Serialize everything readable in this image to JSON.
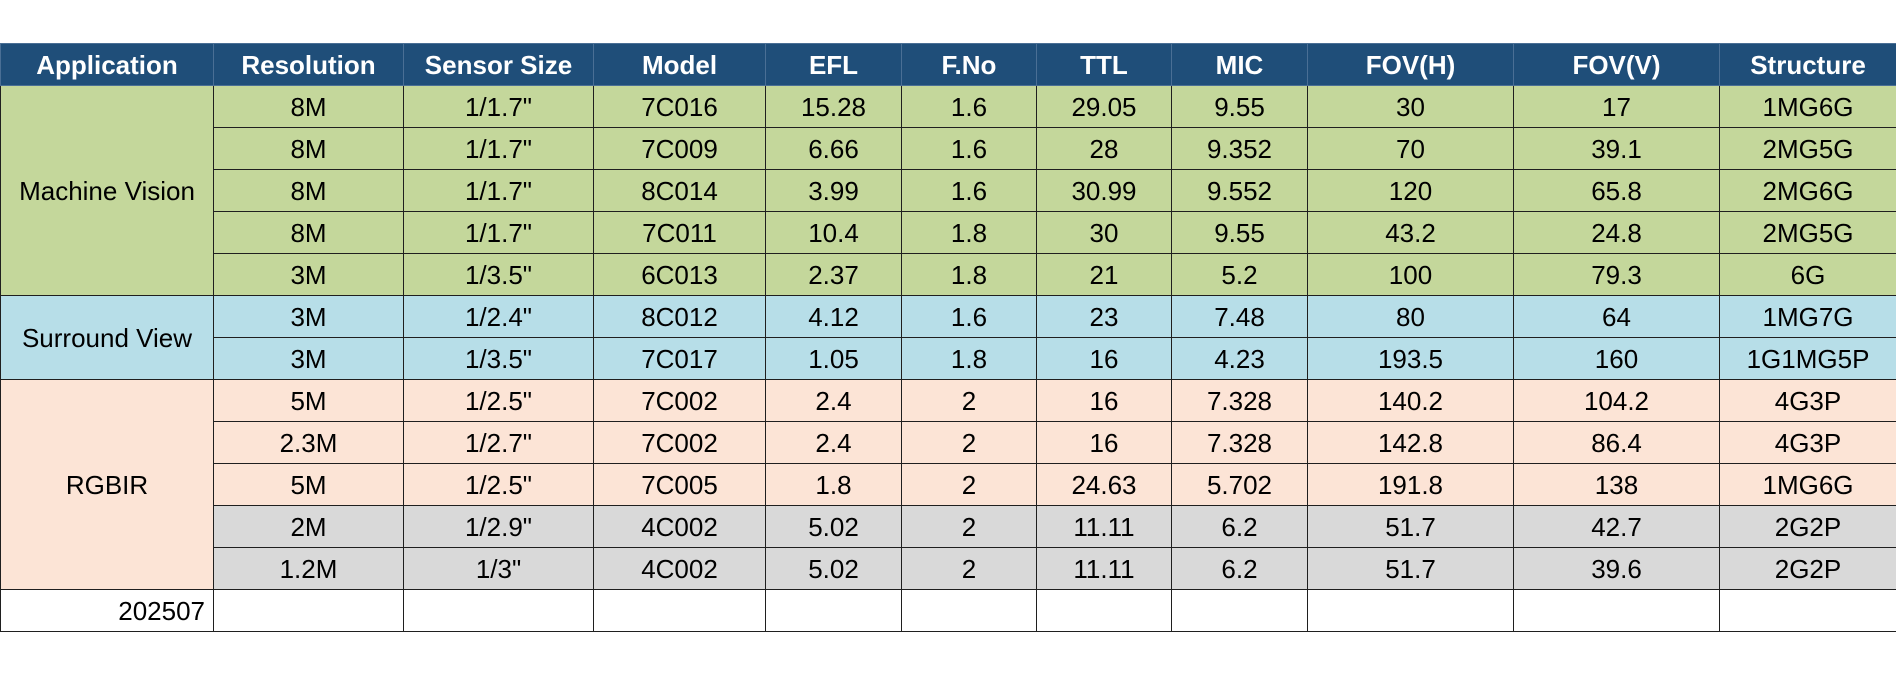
{
  "headers": [
    "Application",
    "Resolution",
    "Sensor Size",
    "Model",
    "EFL",
    "F.No",
    "TTL",
    "MIC",
    "FOV(H)",
    "FOV(V)",
    "Structure"
  ],
  "groups": {
    "machine_vision": "Machine Vision",
    "surround_view": "Surround View",
    "rgbir": "RGBIR"
  },
  "rows": [
    [
      "8M",
      "1/1.7\"",
      "7C016",
      "15.28",
      "1.6",
      "29.05",
      "9.55",
      "30",
      "17",
      "1MG6G"
    ],
    [
      "8M",
      "1/1.7\"",
      "7C009",
      "6.66",
      "1.6",
      "28",
      "9.352",
      "70",
      "39.1",
      "2MG5G"
    ],
    [
      "8M",
      "1/1.7\"",
      "8C014",
      "3.99",
      "1.6",
      "30.99",
      "9.552",
      "120",
      "65.8",
      "2MG6G"
    ],
    [
      "8M",
      "1/1.7\"",
      "7C011",
      "10.4",
      "1.8",
      "30",
      "9.55",
      "43.2",
      "24.8",
      "2MG5G"
    ],
    [
      "3M",
      "1/3.5\"",
      "6C013",
      "2.37",
      "1.8",
      "21",
      "5.2",
      "100",
      "79.3",
      "6G"
    ],
    [
      "3M",
      "1/2.4\"",
      "8C012",
      "4.12",
      "1.6",
      "23",
      "7.48",
      "80",
      "64",
      "1MG7G"
    ],
    [
      "3M",
      "1/3.5\"",
      "7C017",
      "1.05",
      "1.8",
      "16",
      "4.23",
      "193.5",
      "160",
      "1G1MG5P"
    ],
    [
      "5M",
      "1/2.5\"",
      "7C002",
      "2.4",
      "2",
      "16",
      "7.328",
      "140.2",
      "104.2",
      "4G3P"
    ],
    [
      "2.3M",
      "1/2.7\"",
      "7C002",
      "2.4",
      "2",
      "16",
      "7.328",
      "142.8",
      "86.4",
      "4G3P"
    ],
    [
      "5M",
      "1/2.5\"",
      "7C005",
      "1.8",
      "2",
      "24.63",
      "5.702",
      "191.8",
      "138",
      "1MG6G"
    ],
    [
      "2M",
      "1/2.9\"",
      "4C002",
      "5.02",
      "2",
      "11.11",
      "6.2",
      "51.7",
      "42.7",
      "2G2P"
    ],
    [
      "1.2M",
      "1/3\"",
      "4C002",
      "5.02",
      "2",
      "11.11",
      "6.2",
      "51.7",
      "39.6",
      "2G2P"
    ]
  ],
  "footer": {
    "date": "202507"
  },
  "colors": {
    "header_bg": "#1f4e79",
    "machine_vision_bg": "#c4d79b",
    "surround_view_bg": "#b7dee8",
    "rgbir_bg": "#fce4d6",
    "gray_row_bg": "#d9d9d9"
  }
}
